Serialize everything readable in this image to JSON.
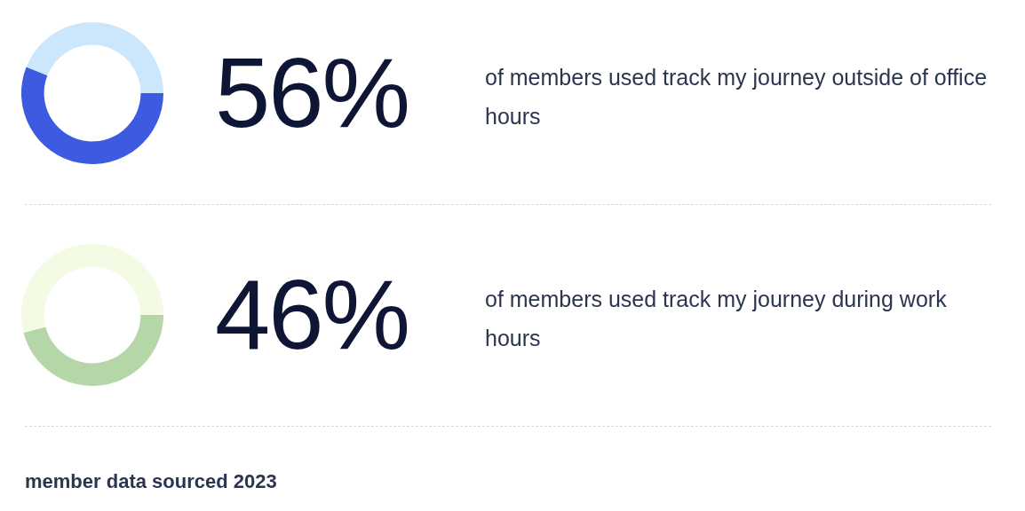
{
  "chart_data": [
    {
      "type": "donut",
      "title": "of members used track my journey outside of office hours",
      "categories": [
        null,
        null
      ],
      "values": [
        56,
        44
      ],
      "colors": [
        "#3d5be0",
        "#cce6fc"
      ],
      "value_labels": [
        "56%",
        null
      ],
      "legend": false
    },
    {
      "type": "donut",
      "title": "of members used track my journey during work hours",
      "categories": [
        null,
        null
      ],
      "values": [
        46,
        54
      ],
      "colors": [
        "#b5d6a7",
        "#f3fbe4"
      ],
      "value_labels": [
        "46%",
        null
      ],
      "legend": false,
      "annotations": [
        "member data sourced 2023"
      ]
    }
  ]
}
